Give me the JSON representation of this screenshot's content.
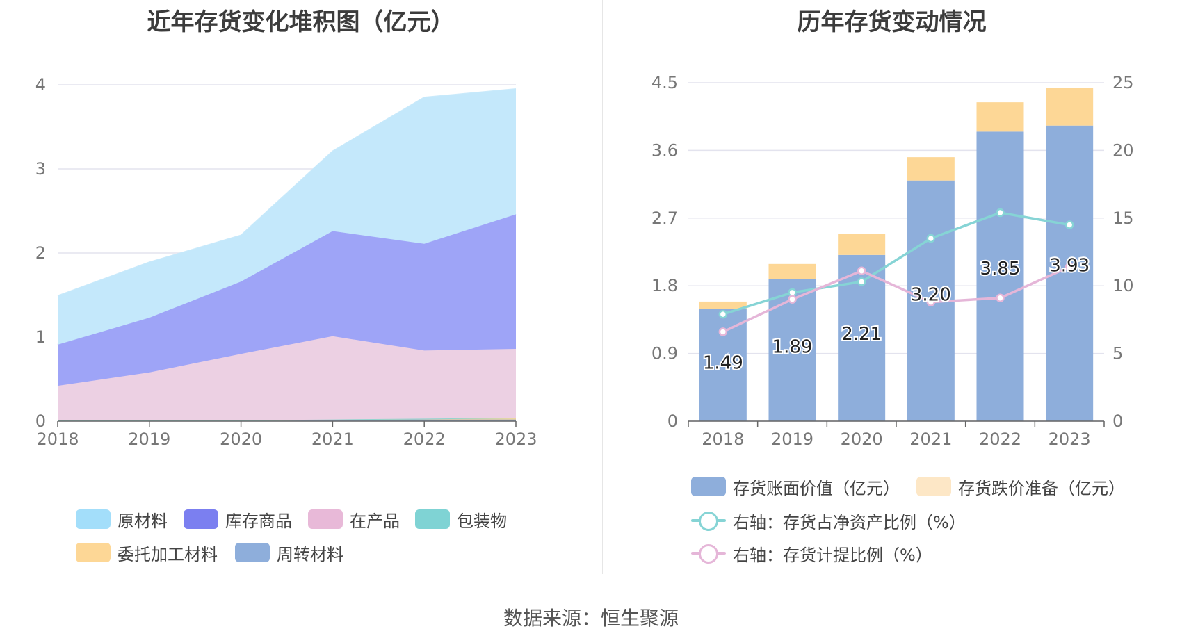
{
  "source": "数据来源：恒生聚源",
  "chart_data": [
    {
      "type": "area",
      "stacked": true,
      "title": "近年存货变化堆积图（亿元）",
      "x": [
        "2018",
        "2019",
        "2020",
        "2021",
        "2022",
        "2023"
      ],
      "ylim": [
        0,
        4
      ],
      "yticks": [
        "0",
        "1",
        "2",
        "3",
        "4"
      ],
      "series": [
        {
          "name": "周转材料",
          "color": "#8eaedb",
          "values": [
            0.01,
            0.01,
            0.01,
            0.02,
            0.02,
            0.02
          ]
        },
        {
          "name": "委托加工材料",
          "color": "#fdd796",
          "values": [
            0.0,
            0.0,
            0.0,
            0.0,
            0.01,
            0.02
          ]
        },
        {
          "name": "包装物",
          "color": "#86d4d5",
          "values": [
            0.0,
            0.0,
            0.0,
            0.0,
            0.0,
            0.0
          ]
        },
        {
          "name": "在产品",
          "color": "#ecd0e3",
          "values": [
            0.41,
            0.57,
            0.79,
            0.99,
            0.81,
            0.82
          ]
        },
        {
          "name": "库存商品",
          "color": "#9ea4f7",
          "values": [
            0.49,
            0.65,
            0.86,
            1.25,
            1.27,
            1.6
          ]
        },
        {
          "name": "原材料",
          "color": "#c4e8fb",
          "values": [
            0.58,
            0.66,
            0.55,
            0.95,
            1.74,
            1.49
          ]
        }
      ],
      "legend": [
        {
          "name": "原材料",
          "color": "#a3defa"
        },
        {
          "name": "库存商品",
          "color": "#7b7ff0"
        },
        {
          "name": "在产品",
          "color": "#e8b9d8"
        },
        {
          "name": "包装物",
          "color": "#7fd3d4"
        },
        {
          "name": "委托加工材料",
          "color": "#fdd796"
        },
        {
          "name": "周转材料",
          "color": "#8eaedb"
        }
      ]
    },
    {
      "type": "bar",
      "title": "历年存货变动情况",
      "categories": [
        "2018",
        "2019",
        "2020",
        "2021",
        "2022",
        "2023"
      ],
      "ylim": [
        0,
        4.5
      ],
      "yticks": [
        "0",
        "0.9",
        "1.8",
        "2.7",
        "3.6",
        "4.5"
      ],
      "y2lim": [
        0,
        25
      ],
      "y2ticks": [
        "0",
        "5",
        "10",
        "15",
        "20",
        "25"
      ],
      "series": [
        {
          "name": "存货账面价值（亿元）",
          "color": "#8eaedb",
          "values": [
            1.49,
            1.89,
            2.21,
            3.2,
            3.85,
            3.93
          ],
          "labels": [
            "1.49",
            "1.89",
            "2.21",
            "3.20",
            "3.85",
            "3.93"
          ]
        },
        {
          "name": "存货跌价准备（亿元）",
          "color": "#fdd796",
          "legend_color": "#fde7c6",
          "values": [
            0.1,
            0.2,
            0.28,
            0.31,
            0.39,
            0.5
          ]
        }
      ],
      "lines": [
        {
          "name": "右轴：存货占净资产比例（%）",
          "color": "#86d4d5",
          "axis": "right",
          "values": [
            7.9,
            9.5,
            10.3,
            13.5,
            15.4,
            14.5
          ]
        },
        {
          "name": "右轴：存货计提比例（%）",
          "color": "#e5b6d8",
          "axis": "right",
          "values": [
            6.6,
            9.0,
            11.1,
            8.8,
            9.1,
            11.4
          ]
        }
      ]
    }
  ]
}
